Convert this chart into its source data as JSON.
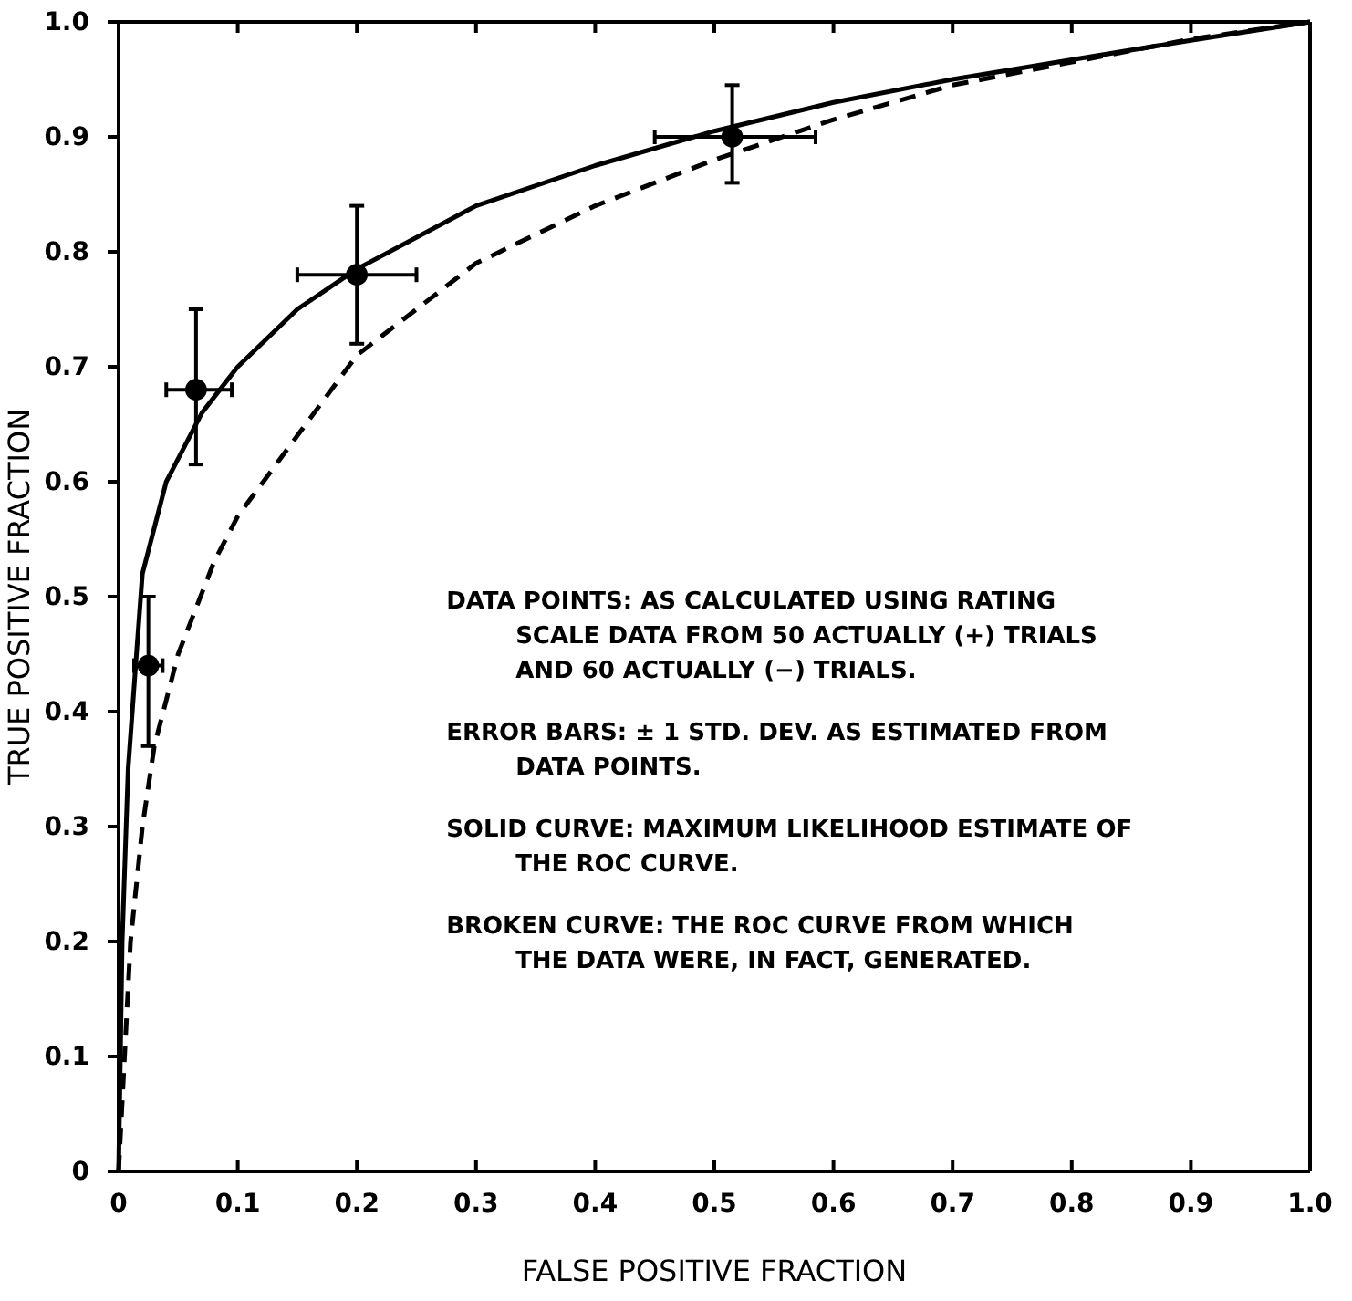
{
  "chart_data": {
    "type": "scatter",
    "xlabel": "FALSE POSITIVE FRACTION",
    "ylabel": "TRUE POSITIVE FRACTION",
    "xlim": [
      0,
      1
    ],
    "ylim": [
      0,
      1
    ],
    "xticks": [
      {
        "value": 0,
        "label": "0"
      },
      {
        "value": 0.1,
        "label": "0.1"
      },
      {
        "value": 0.2,
        "label": "0.2"
      },
      {
        "value": 0.3,
        "label": "0.3"
      },
      {
        "value": 0.4,
        "label": "0.4"
      },
      {
        "value": 0.5,
        "label": "0.5"
      },
      {
        "value": 0.6,
        "label": "0.6"
      },
      {
        "value": 0.7,
        "label": "0.7"
      },
      {
        "value": 0.8,
        "label": "0.8"
      },
      {
        "value": 0.9,
        "label": "0.9"
      },
      {
        "value": 1,
        "label": "1.0"
      }
    ],
    "yticks": [
      {
        "value": 0,
        "label": "0"
      },
      {
        "value": 0.1,
        "label": "0.1"
      },
      {
        "value": 0.2,
        "label": "0.2"
      },
      {
        "value": 0.3,
        "label": "0.3"
      },
      {
        "value": 0.4,
        "label": "0.4"
      },
      {
        "value": 0.5,
        "label": "0.5"
      },
      {
        "value": 0.6,
        "label": "0.6"
      },
      {
        "value": 0.7,
        "label": "0.7"
      },
      {
        "value": 0.8,
        "label": "0.8"
      },
      {
        "value": 0.9,
        "label": "0.9"
      },
      {
        "value": 1,
        "label": "1.0"
      }
    ],
    "series": [
      {
        "type": "line",
        "color": "#000000",
        "line_style": "solid",
        "x": [
          0,
          0.003,
          0.008,
          0.015,
          0.02,
          0.04,
          0.07,
          0.1,
          0.15,
          0.2,
          0.3,
          0.4,
          0.5,
          0.6,
          0.7,
          0.8,
          0.9,
          1
        ],
        "values": [
          0,
          0.2,
          0.35,
          0.45,
          0.52,
          0.6,
          0.66,
          0.7,
          0.75,
          0.785,
          0.84,
          0.875,
          0.905,
          0.93,
          0.95,
          0.967,
          0.984,
          1
        ]
      },
      {
        "type": "line",
        "color": "#000000",
        "line_style": "dashed",
        "x": [
          0,
          0.01,
          0.02,
          0.03,
          0.05,
          0.08,
          0.1,
          0.15,
          0.2,
          0.3,
          0.4,
          0.5,
          0.6,
          0.7,
          0.8,
          0.9,
          1
        ],
        "values": [
          0,
          0.2,
          0.3,
          0.37,
          0.45,
          0.53,
          0.57,
          0.64,
          0.71,
          0.79,
          0.84,
          0.88,
          0.915,
          0.945,
          0.965,
          0.985,
          1
        ]
      },
      {
        "color": "#000000",
        "marker": "circle",
        "x": [
          0.025,
          0.065,
          0.2,
          0.515
        ],
        "values": [
          0.44,
          0.68,
          0.78,
          0.9
        ],
        "errors": [
          [
            0.37,
            0.5
          ],
          [
            0.615,
            0.75
          ],
          [
            0.72,
            0.84
          ],
          [
            0.86,
            0.945
          ]
        ],
        "xerrors": [
          [
            0.013,
            0.037
          ],
          [
            0.04,
            0.095
          ],
          [
            0.15,
            0.25
          ],
          [
            0.45,
            0.585
          ]
        ]
      }
    ],
    "annotations": [
      "DATA POINTS: AS CALCULATED USING RATING\nSCALE DATA FROM 50 ACTUALLY (+) TRIALS\nAND 60 ACTUALLY (−) TRIALS.",
      "ERROR BARS: ± 1 STD. DEV. AS ESTIMATED FROM\nDATA POINTS.",
      "SOLID CURVE: MAXIMUM LIKELIHOOD ESTIMATE OF\nTHE ROC CURVE.",
      "BROKEN CURVE: THE ROC CURVE FROM WHICH\nTHE DATA WERE, IN FACT, GENERATED."
    ]
  }
}
